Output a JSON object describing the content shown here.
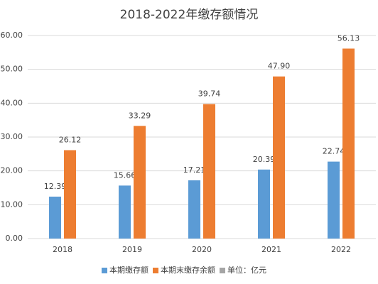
{
  "chart_data": {
    "type": "bar",
    "title": "2018-2022年缴存额情况",
    "categories": [
      "2018",
      "2019",
      "2020",
      "2021",
      "2022"
    ],
    "series": [
      {
        "name": "本期缴存额",
        "color": "#5b9bd5",
        "values": [
          12.39,
          15.66,
          17.21,
          20.39,
          22.74
        ],
        "value_labels": [
          "12.39",
          "15.66",
          "17.21",
          "20.39",
          "22.74"
        ]
      },
      {
        "name": "本期末缴存余额",
        "color": "#ed7d31",
        "values": [
          26.12,
          33.29,
          39.74,
          47.9,
          56.13
        ],
        "value_labels": [
          "26.12",
          "33.29",
          "39.74",
          "47.90",
          "56.13"
        ]
      }
    ],
    "unit_label": "单位：亿元",
    "unit_color": "#a5a5a5",
    "ylim": [
      0,
      60
    ],
    "yticks": [
      {
        "value": 0,
        "label": "0.00"
      },
      {
        "value": 10,
        "label": "10.00"
      },
      {
        "value": 20,
        "label": "20.00"
      },
      {
        "value": 30,
        "label": "30.00"
      },
      {
        "value": 40,
        "label": "40.00"
      },
      {
        "value": 50,
        "label": "50.00"
      },
      {
        "value": 60,
        "label": "60.00"
      }
    ],
    "grid": true
  }
}
